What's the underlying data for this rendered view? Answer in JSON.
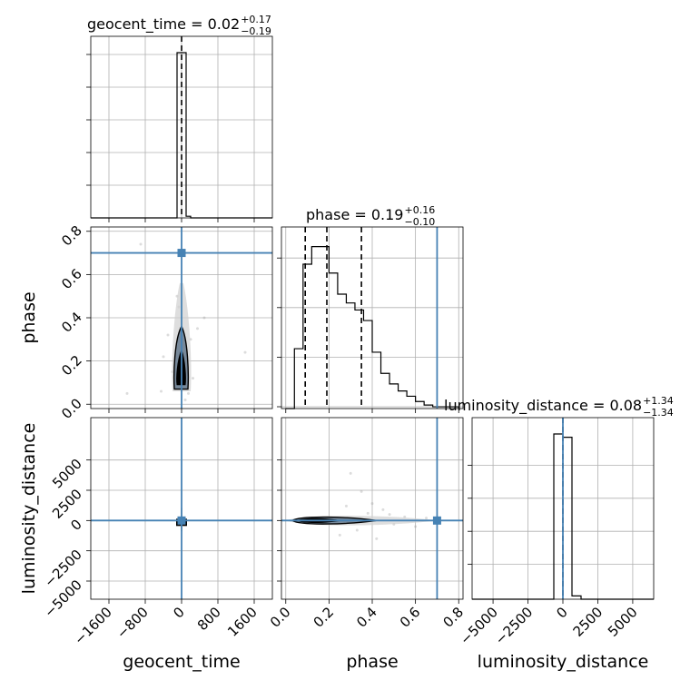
{
  "chart_data": {
    "type": "corner",
    "parameters": [
      "geocent_time",
      "phase",
      "luminosity_distance"
    ],
    "truths": {
      "geocent_time": 0.0,
      "phase": 0.7,
      "luminosity_distance": 0.0
    },
    "colors": {
      "truth": "#4682b4",
      "hist": "#000000",
      "grid": "#b0b0b0",
      "scatter": "#9a9a9a",
      "contour_fill": "#778899"
    },
    "titles": [
      {
        "param": "geocent_time",
        "prefix": "geocent_time = 0.02",
        "sup": "+0.17",
        "sub": "−0.19"
      },
      {
        "param": "phase",
        "prefix": "phase = 0.19",
        "sup": "+0.16",
        "sub": "−0.10"
      },
      {
        "param": "luminosity_distance",
        "prefix": "luminosity_distance = 0.08",
        "sup": "+1.34",
        "sub": "−1.34"
      }
    ],
    "axis_labels": {
      "x": [
        "geocent_time",
        "phase",
        "luminosity_distance"
      ],
      "y": [
        "phase",
        "luminosity_distance"
      ]
    },
    "ranges": {
      "geocent_time": [
        -2000,
        2000
      ],
      "phase": [
        -0.02,
        0.82
      ],
      "luminosity_distance": [
        -6500,
        8500
      ],
      "luminosity_distance_diag": [
        -6500,
        6500
      ]
    },
    "ticks": {
      "geocent_time": [
        "−1600",
        "−800",
        "0",
        "800",
        "1600"
      ],
      "geocent_time_values": [
        -1600,
        -800,
        0,
        800,
        1600
      ],
      "phase": [
        "0.0",
        "0.2",
        "0.4",
        "0.6",
        "0.8"
      ],
      "phase_values": [
        0.0,
        0.2,
        0.4,
        0.6,
        0.8
      ],
      "luminosity_distance_x": [
        "−5000",
        "−2500",
        "0",
        "2500",
        "5000"
      ],
      "luminosity_distance_values": [
        -5000,
        -2500,
        0,
        2500,
        5000
      ],
      "luminosity_distance_y": [
        "−5000",
        "−2500",
        "0",
        "2500",
        "5000"
      ]
    },
    "hist_geocent_time": {
      "bin_edges": [
        -2000,
        -1800,
        -1600,
        -1400,
        -1200,
        -1000,
        -800,
        -600,
        -400,
        -200,
        -100,
        0,
        100,
        200,
        400,
        600,
        800,
        1000,
        1200,
        1400,
        1600,
        1800,
        2000
      ],
      "counts": [
        0,
        0,
        0,
        0,
        0,
        0,
        0,
        0,
        0,
        0,
        1.0,
        1.0,
        0.01,
        0,
        0,
        0,
        0,
        0,
        0,
        0,
        0,
        0
      ],
      "quantiles": [
        0.02
      ]
    },
    "hist_phase": {
      "bin_edges": [
        0.0,
        0.04,
        0.08,
        0.12,
        0.16,
        0.2,
        0.24,
        0.28,
        0.32,
        0.36,
        0.4,
        0.44,
        0.48,
        0.52,
        0.56,
        0.6,
        0.64,
        0.68,
        0.72,
        0.76,
        0.8
      ],
      "counts": [
        0.0,
        0.34,
        0.82,
        0.92,
        0.92,
        0.77,
        0.65,
        0.6,
        0.56,
        0.5,
        0.32,
        0.2,
        0.14,
        0.1,
        0.07,
        0.04,
        0.02,
        0.01,
        0.01,
        0.01
      ],
      "quantiles": [
        0.09,
        0.19,
        0.35
      ]
    },
    "hist_luminosity_distance": {
      "bin_edges": [
        -6500,
        -5850,
        -5200,
        -4550,
        -3900,
        -3250,
        -2600,
        -1950,
        -1300,
        -650,
        0,
        650,
        1300,
        1950,
        2600,
        3250,
        3900,
        4550,
        5200,
        5850,
        6500
      ],
      "counts": [
        0,
        0,
        0,
        0,
        0,
        0,
        0,
        0,
        0,
        1.0,
        0.98,
        0.02,
        0,
        0,
        0,
        0,
        0,
        0,
        0,
        0
      ],
      "quantiles": [
        0.08
      ]
    },
    "scatter_geocent_phase": [
      [
        -400,
        0.22
      ],
      [
        -450,
        0.06
      ],
      [
        200,
        0.3
      ],
      [
        500,
        0.4
      ],
      [
        350,
        0.35
      ],
      [
        -200,
        0.15
      ],
      [
        150,
        0.05
      ],
      [
        -100,
        0.5
      ],
      [
        80,
        0.02
      ],
      [
        -60,
        0.45
      ],
      [
        1400,
        0.24
      ],
      [
        -900,
        0.74
      ],
      [
        -1200,
        0.05
      ],
      [
        250,
        0.12
      ],
      [
        -300,
        0.32
      ]
    ],
    "scatter_phase_lumdist": [
      [
        0.3,
        3900
      ],
      [
        0.35,
        2400
      ],
      [
        0.4,
        1400
      ],
      [
        0.45,
        900
      ],
      [
        0.5,
        -300
      ],
      [
        0.55,
        300
      ],
      [
        0.6,
        -500
      ],
      [
        0.65,
        200
      ],
      [
        0.25,
        -1200
      ],
      [
        0.7,
        100
      ],
      [
        0.33,
        -800
      ],
      [
        0.42,
        -1500
      ],
      [
        0.38,
        600
      ],
      [
        0.28,
        1200
      ],
      [
        0.48,
        500
      ]
    ]
  }
}
